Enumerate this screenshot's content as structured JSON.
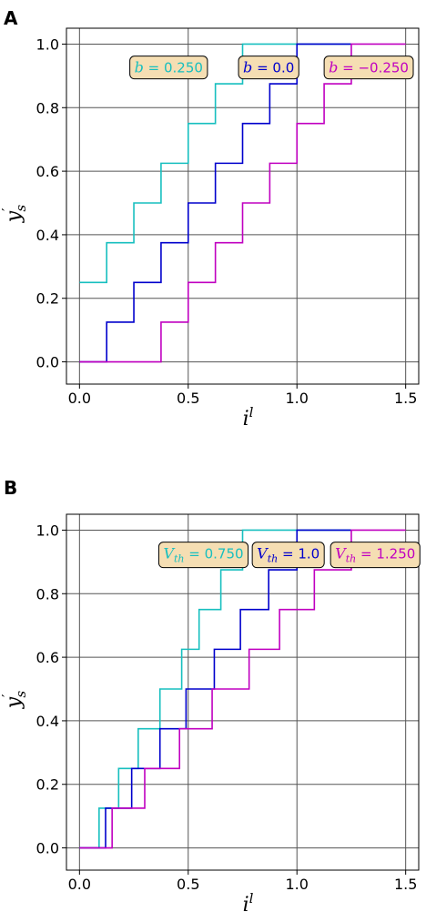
{
  "chart_data": [
    {
      "panel": "A",
      "type": "line",
      "step": true,
      "xlabel": "i",
      "xlabel_sup": "l",
      "ylabel": "y",
      "ylabel_sub": "s",
      "ylabel_prime": "′",
      "xlim": [
        -0.06,
        1.56
      ],
      "ylim": [
        -0.07,
        1.05
      ],
      "xticks": [
        0.0,
        0.5,
        1.0,
        1.5
      ],
      "xtick_labels": [
        "0.0",
        "0.5",
        "1.0",
        "1.5"
      ],
      "yticks": [
        0.0,
        0.2,
        0.4,
        0.6,
        0.8,
        1.0
      ],
      "ytick_labels": [
        "0.0",
        "0.2",
        "0.4",
        "0.6",
        "0.8",
        "1.0"
      ],
      "grid": true,
      "series": [
        {
          "color": "#17bfbf",
          "annotation": {
            "var": "b",
            "eq": " = ",
            "value": "0.250",
            "at": [
              0.41,
              0.925
            ]
          },
          "x": [
            0.0,
            0.125,
            0.25,
            0.375,
            0.5,
            0.625,
            0.75,
            1.25
          ],
          "y": [
            0.25,
            0.375,
            0.5,
            0.625,
            0.75,
            0.875,
            1.0,
            1.0
          ]
        },
        {
          "color": "#0000cc",
          "annotation": {
            "var": "b",
            "eq": " = ",
            "value": "0.0",
            "at": [
              0.87,
              0.925
            ]
          },
          "x": [
            0.0,
            0.125,
            0.25,
            0.375,
            0.5,
            0.625,
            0.75,
            0.875,
            1.0,
            1.25
          ],
          "y": [
            0.0,
            0.125,
            0.25,
            0.375,
            0.5,
            0.625,
            0.75,
            0.875,
            1.0,
            1.0
          ]
        },
        {
          "color": "#c000c0",
          "annotation": {
            "var": "b",
            "eq": " = ",
            "value": "−0.250",
            "at": [
              1.33,
              0.925
            ]
          },
          "x": [
            0.0,
            0.375,
            0.5,
            0.625,
            0.75,
            0.875,
            1.0,
            1.125,
            1.25,
            1.5
          ],
          "y": [
            0.0,
            0.125,
            0.25,
            0.375,
            0.5,
            0.625,
            0.75,
            0.875,
            1.0,
            1.0
          ]
        }
      ]
    },
    {
      "panel": "B",
      "type": "line",
      "step": true,
      "xlabel": "i",
      "xlabel_sup": "l",
      "ylabel": "y",
      "ylabel_sub": "s",
      "ylabel_prime": "′",
      "xlim": [
        -0.06,
        1.56
      ],
      "ylim": [
        -0.07,
        1.05
      ],
      "xticks": [
        0.0,
        0.5,
        1.0,
        1.5
      ],
      "xtick_labels": [
        "0.0",
        "0.5",
        "1.0",
        "1.5"
      ],
      "yticks": [
        0.0,
        0.2,
        0.4,
        0.6,
        0.8,
        1.0
      ],
      "ytick_labels": [
        "0.0",
        "0.2",
        "0.4",
        "0.6",
        "0.8",
        "1.0"
      ],
      "grid": true,
      "series": [
        {
          "color": "#17bfbf",
          "annotation": {
            "var": "V",
            "sub": "th",
            "eq": " = ",
            "value": "0.750",
            "at": [
              0.57,
              0.925
            ]
          },
          "x": [
            0.0,
            0.09,
            0.18,
            0.27,
            0.37,
            0.47,
            0.55,
            0.65,
            0.75,
            1.25
          ],
          "y": [
            0.0,
            0.125,
            0.25,
            0.375,
            0.5,
            0.625,
            0.75,
            0.875,
            1.0,
            1.0
          ]
        },
        {
          "color": "#0000cc",
          "annotation": {
            "var": "V",
            "sub": "th",
            "eq": " = ",
            "value": "1.0",
            "at": [
              0.96,
              0.925
            ]
          },
          "x": [
            0.0,
            0.12,
            0.24,
            0.37,
            0.49,
            0.62,
            0.74,
            0.87,
            1.0,
            1.25
          ],
          "y": [
            0.0,
            0.125,
            0.25,
            0.375,
            0.5,
            0.625,
            0.75,
            0.875,
            1.0,
            1.0
          ]
        },
        {
          "color": "#c000c0",
          "annotation": {
            "var": "V",
            "sub": "th",
            "eq": " = ",
            "value": "1.250",
            "at": [
              1.36,
              0.925
            ]
          },
          "x": [
            0.0,
            0.15,
            0.3,
            0.46,
            0.61,
            0.78,
            0.92,
            1.08,
            1.25,
            1.5
          ],
          "y": [
            0.0,
            0.125,
            0.25,
            0.375,
            0.5,
            0.625,
            0.75,
            0.875,
            1.0,
            1.0
          ]
        }
      ]
    }
  ]
}
